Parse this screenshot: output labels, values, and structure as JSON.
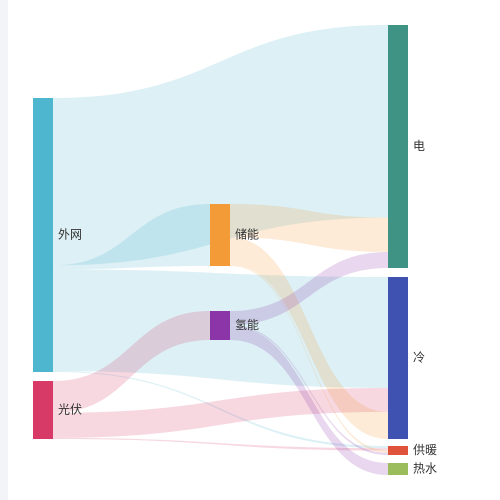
{
  "colors": {
    "page_background": "#ffffff",
    "left_strip": "#f3f4f8"
  },
  "diagram": {
    "type": "sankey",
    "nodes": [
      {
        "id": "grid",
        "label": "外网",
        "color": "#4fb6cf"
      },
      {
        "id": "pv",
        "label": "光伏",
        "color": "#d83a67"
      },
      {
        "id": "storage",
        "label": "储能",
        "color": "#f39b37"
      },
      {
        "id": "h2",
        "label": "氢能",
        "color": "#8b35a8"
      },
      {
        "id": "elec",
        "label": "电",
        "color": "#3e9385"
      },
      {
        "id": "cold",
        "label": "冷",
        "color": "#3f51b1"
      },
      {
        "id": "heat",
        "label": "供暖",
        "color": "#e0533b"
      },
      {
        "id": "water",
        "label": "热水",
        "color": "#9bbd5c"
      }
    ],
    "links": [
      {
        "source": "grid",
        "target": "elec",
        "value": 168
      },
      {
        "source": "grid",
        "target": "storage",
        "value": 4
      },
      {
        "source": "grid",
        "target": "cold",
        "value": 102
      },
      {
        "source": "grid",
        "target": "heat",
        "value": 1
      },
      {
        "source": "pv",
        "target": "h2",
        "value": 28
      },
      {
        "source": "pv",
        "target": "cold",
        "value": 22
      },
      {
        "source": "pv",
        "target": "heat",
        "value": 1
      },
      {
        "source": "storage",
        "target": "elec",
        "value": 30
      },
      {
        "source": "storage",
        "target": "cold",
        "value": 25
      },
      {
        "source": "storage",
        "target": "heat",
        "value": 1
      },
      {
        "source": "h2",
        "target": "elec",
        "value": 14
      },
      {
        "source": "h2",
        "target": "heat",
        "value": 1
      },
      {
        "source": "h2",
        "target": "water",
        "value": 14
      }
    ]
  }
}
